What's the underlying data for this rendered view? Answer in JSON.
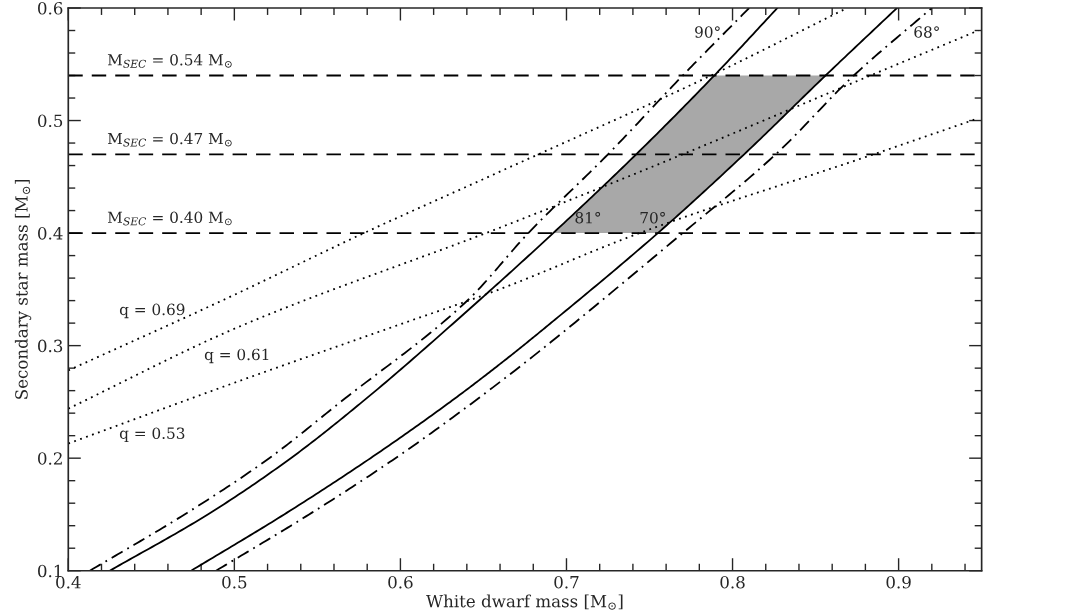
{
  "chart_data": {
    "type": "line",
    "xlabel": "White dwarf mass [M$_{⊙}$]",
    "ylabel": "Secondary star mass [M$_{⊙}$]",
    "xlim": [
      0.4,
      0.95
    ],
    "ylim": [
      0.1,
      0.6
    ],
    "xticks": [
      0.4,
      0.5,
      0.6,
      0.7,
      0.8,
      0.9,
      {
        "value": 0.42,
        "label": null
      },
      {
        "value": 0.44,
        "label": null
      },
      {
        "value": 0.46,
        "label": null
      },
      {
        "value": 0.48,
        "label": null
      },
      {
        "value": 0.52,
        "label": null
      },
      {
        "value": 0.54,
        "label": null
      },
      {
        "value": 0.56,
        "label": null
      },
      {
        "value": 0.58,
        "label": null
      },
      {
        "value": 0.62,
        "label": null
      },
      {
        "value": 0.64,
        "label": null
      },
      {
        "value": 0.66,
        "label": null
      },
      {
        "value": 0.68,
        "label": null
      },
      {
        "value": 0.72,
        "label": null
      },
      {
        "value": 0.74,
        "label": null
      },
      {
        "value": 0.76,
        "label": null
      },
      {
        "value": 0.78,
        "label": null
      },
      {
        "value": 0.82,
        "label": null
      },
      {
        "value": 0.84,
        "label": null
      },
      {
        "value": 0.86,
        "label": null
      },
      {
        "value": 0.88,
        "label": null
      },
      {
        "value": 0.92,
        "label": null
      },
      {
        "value": 0.94,
        "label": null
      }
    ],
    "yticks": [
      0.1,
      0.2,
      0.3,
      0.4,
      0.5,
      0.6,
      {
        "value": 0.12,
        "label": null
      },
      {
        "value": 0.14,
        "label": null
      },
      {
        "value": 0.16,
        "label": null
      },
      {
        "value": 0.18,
        "label": null
      },
      {
        "value": 0.22,
        "label": null
      },
      {
        "value": 0.24,
        "label": null
      },
      {
        "value": 0.26,
        "label": null
      },
      {
        "value": 0.28,
        "label": null
      },
      {
        "value": 0.32,
        "label": null
      },
      {
        "value": 0.34,
        "label": null
      },
      {
        "value": 0.36,
        "label": null
      },
      {
        "value": 0.38,
        "label": null
      },
      {
        "value": 0.42,
        "label": null
      },
      {
        "value": 0.44,
        "label": null
      },
      {
        "value": 0.46,
        "label": null
      },
      {
        "value": 0.48,
        "label": null
      },
      {
        "value": 0.52,
        "label": null
      },
      {
        "value": 0.54,
        "label": null
      },
      {
        "value": 0.56,
        "label": null
      },
      {
        "value": 0.58,
        "label": null
      }
    ],
    "grid": false,
    "legend": false,
    "series": [
      {
        "type": "area",
        "color": "#a8a8a8",
        "x": [
          0.692,
          0.742,
          0.789,
          0.856,
          0.807,
          0.755
        ],
        "values": [
          0.4,
          0.47,
          0.54,
          0.54,
          0.47,
          0.4
        ]
      },
      {
        "color": "#000000",
        "line_style": "solid",
        "x": [
          0.425,
          0.484,
          0.534,
          0.577,
          0.648,
          0.692,
          0.742,
          0.789,
          0.827
        ],
        "values": [
          0.1,
          0.15,
          0.2,
          0.25,
          0.341,
          0.4,
          0.47,
          0.54,
          0.6
        ]
      },
      {
        "color": "#000000",
        "line_style": "solid",
        "x": [
          0.474,
          0.53,
          0.582,
          0.63,
          0.662,
          0.693,
          0.755,
          0.807,
          0.856,
          0.899
        ],
        "values": [
          0.1,
          0.15,
          0.2,
          0.25,
          0.286,
          0.323,
          0.4,
          0.47,
          0.54,
          0.6
        ]
      },
      {
        "color": "#000000",
        "line_style": "dashdot",
        "x": [
          0.413,
          0.47,
          0.521,
          0.564,
          0.641,
          0.677,
          0.725,
          0.77,
          0.81
        ],
        "values": [
          0.1,
          0.15,
          0.2,
          0.25,
          0.341,
          0.4,
          0.47,
          0.54,
          0.6
        ]
      },
      {
        "color": "#000000",
        "line_style": "dashdot",
        "x": [
          0.489,
          0.545,
          0.597,
          0.662,
          0.77,
          0.826,
          0.873,
          0.92
        ],
        "values": [
          0.1,
          0.15,
          0.2,
          0.27,
          0.4,
          0.47,
          0.54,
          0.6
        ]
      },
      {
        "color": "#000000",
        "line_style": "dotted",
        "x": [
          0.4,
          0.494,
          0.578,
          0.656,
          0.787,
          0.869
        ],
        "values": [
          0.278,
          0.341,
          0.4,
          0.452,
          0.54,
          0.6
        ]
      },
      {
        "color": "#000000",
        "line_style": "dotted",
        "x": [
          0.4,
          0.5,
          0.662,
          0.77,
          0.883,
          0.948
        ],
        "values": [
          0.244,
          0.315,
          0.406,
          0.47,
          0.54,
          0.58
        ]
      },
      {
        "color": "#000000",
        "line_style": "dotted",
        "x": [
          0.4,
          0.5,
          0.6,
          0.656,
          0.744,
          0.885,
          0.948
        ],
        "values": [
          0.213,
          0.267,
          0.319,
          0.348,
          0.4,
          0.47,
          0.502
        ]
      }
    ],
    "ref_lines": [
      {
        "axis": "y",
        "value": 0.54,
        "label": "M$_{SEC}$ = 0.54 M$_{⊙}$",
        "line_style": "dashed",
        "color": "#000000"
      },
      {
        "axis": "y",
        "value": 0.47,
        "label": "M$_{SEC}$ = 0.47 M$_{⊙}$",
        "line_style": "dashed",
        "color": "#000000"
      },
      {
        "axis": "y",
        "value": 0.4,
        "label": "M$_{SEC}$ = 0.40 M$_{⊙}$",
        "line_style": "dashed",
        "color": "#000000"
      }
    ],
    "annotations": [
      "90°",
      "68°",
      "81°",
      "70°",
      "q = 0.69",
      "q = 0.61",
      "q = 0.53"
    ]
  }
}
